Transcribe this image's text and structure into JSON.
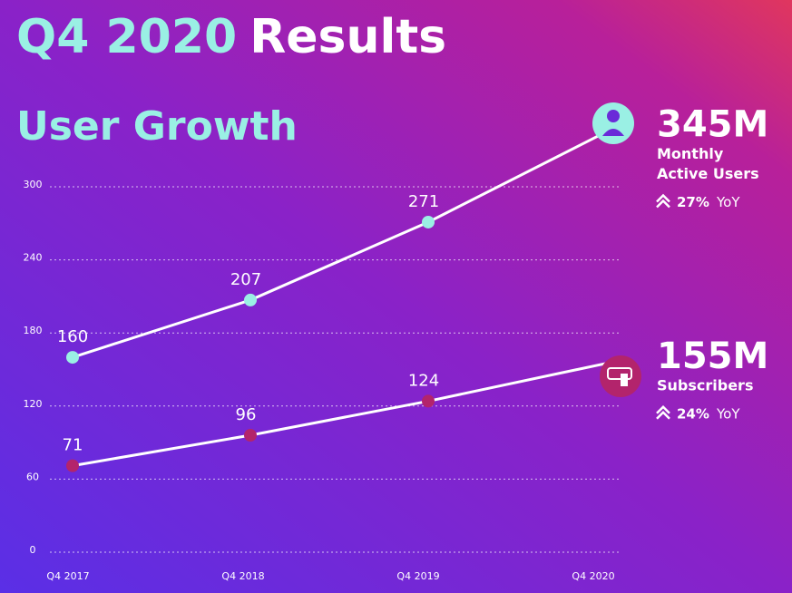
{
  "chart_data": {
    "type": "line",
    "title_highlight": "Q4 2020",
    "title": "Results",
    "subtitle": "User Growth",
    "categories": [
      "Q4 2017",
      "Q4 2018",
      "Q4 2019",
      "Q4 2020"
    ],
    "ylim": [
      0,
      300
    ],
    "yticks": [
      0,
      60,
      120,
      180,
      240,
      300
    ],
    "grid": true,
    "series": [
      {
        "name": "Monthly Active Users",
        "color": "#9af0e4",
        "values": [
          160,
          207,
          271,
          345
        ],
        "headline": "345M",
        "label_lines": [
          "Monthly",
          "Active Users"
        ],
        "yoy": "27%",
        "yoy_suffix": "YoY"
      },
      {
        "name": "Subscribers",
        "color": "#b3246c",
        "values": [
          71,
          96,
          124,
          155
        ],
        "headline": "155M",
        "label_lines": [
          "Subscribers"
        ],
        "yoy": "24%",
        "yoy_suffix": "YoY"
      }
    ]
  }
}
